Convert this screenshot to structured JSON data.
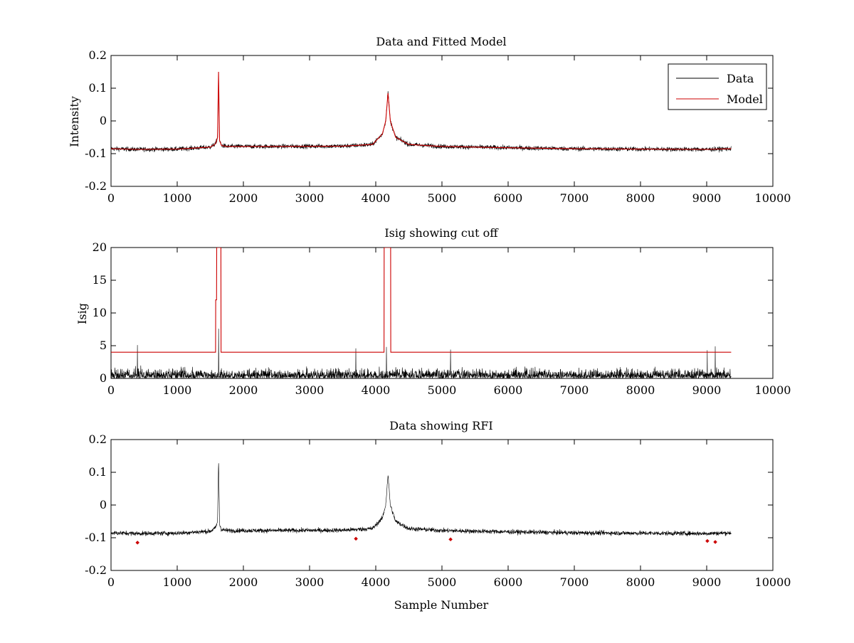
{
  "colors": {
    "data": "#000000",
    "model": "#cc0000",
    "axes": "#000000"
  },
  "chart_data": [
    {
      "type": "line",
      "title": "Data and Fitted Model",
      "xlabel": "",
      "ylabel": "Intensity",
      "xlim": [
        0,
        10000
      ],
      "ylim": [
        -0.2,
        0.2
      ],
      "xticks": [
        0,
        1000,
        2000,
        3000,
        4000,
        5000,
        6000,
        7000,
        8000,
        9000,
        10000
      ],
      "yticks": [
        -0.2,
        -0.1,
        0,
        0.1,
        0.2
      ],
      "ytick_labels": [
        "-0.2",
        "-0.1",
        "0",
        "0.1",
        "0.2"
      ],
      "legend": {
        "position": "top-right",
        "entries": [
          "Data",
          "Model"
        ]
      },
      "series": [
        {
          "name": "Data",
          "kind": "noise",
          "x": [
            0,
            400,
            1000,
            1500,
            1580,
            1610,
            1625,
            1640,
            1670,
            1750,
            2500,
            3500,
            3950,
            4100,
            4150,
            4185,
            4220,
            4300,
            4500,
            5000,
            6000,
            7000,
            8000,
            9000,
            9370
          ],
          "y": [
            -0.085,
            -0.087,
            -0.086,
            -0.08,
            -0.07,
            -0.05,
            0.14,
            -0.06,
            -0.075,
            -0.078,
            -0.078,
            -0.077,
            -0.072,
            -0.04,
            0.0,
            0.09,
            0.0,
            -0.05,
            -0.072,
            -0.078,
            -0.082,
            -0.085,
            -0.086,
            -0.087,
            -0.085
          ],
          "noise": 0.012
        },
        {
          "name": "Model",
          "kind": "line",
          "x": [
            0,
            400,
            1000,
            1500,
            1580,
            1610,
            1625,
            1640,
            1670,
            1750,
            2500,
            3500,
            3950,
            4100,
            4150,
            4185,
            4220,
            4300,
            4500,
            5000,
            6000,
            7000,
            8000,
            9000,
            9370
          ],
          "y": [
            -0.085,
            -0.087,
            -0.086,
            -0.08,
            -0.07,
            -0.05,
            0.15,
            -0.06,
            -0.075,
            -0.078,
            -0.078,
            -0.077,
            -0.072,
            -0.04,
            0.0,
            0.085,
            0.0,
            -0.05,
            -0.072,
            -0.078,
            -0.082,
            -0.085,
            -0.086,
            -0.087,
            -0.085
          ]
        }
      ]
    },
    {
      "type": "line",
      "title": "Isig showing cut off",
      "xlabel": "",
      "ylabel": "Isig",
      "xlim": [
        0,
        10000
      ],
      "ylim": [
        0,
        20
      ],
      "xticks": [
        0,
        1000,
        2000,
        3000,
        4000,
        5000,
        6000,
        7000,
        8000,
        9000,
        10000
      ],
      "yticks": [
        0,
        5,
        10,
        15,
        20
      ],
      "ytick_labels": [
        "0",
        "5",
        "10",
        "15",
        "20"
      ],
      "series": [
        {
          "name": "Isig",
          "kind": "abs-noise",
          "x": [
            0,
            9370
          ],
          "y": [
            0,
            0
          ],
          "noise": 1.2,
          "spikes": [
            [
              400,
              5.1
            ],
            [
              1625,
              7.6
            ],
            [
              3700,
              4.6
            ],
            [
              4160,
              4.8
            ],
            [
              5130,
              4.4
            ],
            [
              9010,
              4.3
            ],
            [
              9130,
              4.9
            ]
          ]
        },
        {
          "name": "Cut off",
          "kind": "line",
          "x": [
            0,
            1580,
            1582,
            1595,
            1597,
            1660,
            1662,
            4125,
            4127,
            4225,
            4227,
            9370
          ],
          "y": [
            4,
            4,
            12,
            12,
            20,
            20,
            4,
            4,
            20,
            20,
            4,
            4
          ]
        }
      ]
    },
    {
      "type": "line",
      "title": "Data showing RFI",
      "xlabel": "Sample Number",
      "ylabel": "",
      "xlim": [
        0,
        10000
      ],
      "ylim": [
        -0.2,
        0.2
      ],
      "xticks": [
        0,
        1000,
        2000,
        3000,
        4000,
        5000,
        6000,
        7000,
        8000,
        9000,
        10000
      ],
      "yticks": [
        -0.2,
        -0.1,
        0,
        0.1,
        0.2
      ],
      "ytick_labels": [
        "-0.2",
        "-0.1",
        "0",
        "0.1",
        "0.2"
      ],
      "series": [
        {
          "name": "Data",
          "kind": "noise",
          "x": [
            0,
            400,
            1000,
            1500,
            1580,
            1610,
            1625,
            1640,
            1670,
            1750,
            2500,
            3500,
            3950,
            4100,
            4150,
            4185,
            4220,
            4300,
            4500,
            5000,
            6000,
            7000,
            8000,
            9000,
            9370
          ],
          "y": [
            -0.085,
            -0.087,
            -0.086,
            -0.08,
            -0.07,
            -0.05,
            0.14,
            -0.06,
            -0.075,
            -0.078,
            -0.078,
            -0.077,
            -0.072,
            -0.04,
            0.0,
            0.093,
            0.0,
            -0.05,
            -0.072,
            -0.078,
            -0.082,
            -0.085,
            -0.086,
            -0.087,
            -0.085
          ],
          "noise": 0.012
        },
        {
          "name": "RFI",
          "kind": "markers",
          "x": [
            400,
            3700,
            5130,
            9010,
            9130
          ],
          "y": [
            -0.115,
            -0.103,
            -0.105,
            -0.11,
            -0.113
          ]
        }
      ]
    }
  ]
}
